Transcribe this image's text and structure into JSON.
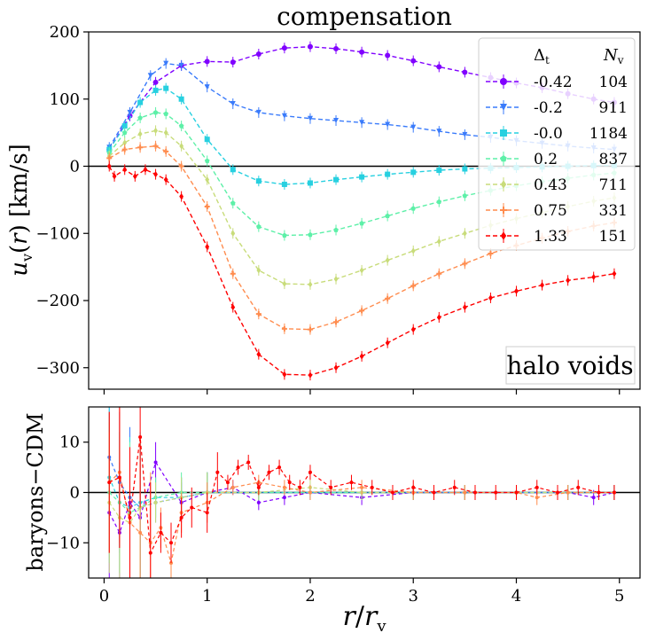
{
  "chart_data": [
    {
      "type": "line",
      "title": "compensation",
      "xlabel": "r/r_v",
      "ylabel": "u_v(r) [km/s]",
      "xlim": [
        -0.15,
        5.2
      ],
      "ylim": [
        -332,
        200
      ],
      "yticks": [
        200,
        100,
        0,
        -100,
        -200,
        -300
      ],
      "xticks": [
        0,
        1,
        2,
        3,
        4,
        5
      ],
      "annotation": "halo voids",
      "legend": {
        "position": "top-right",
        "header_delta": "Δ",
        "header_delta_sub": "t",
        "header_n": "N",
        "header_n_sub": "v"
      },
      "series": [
        {
          "name": "-0.42",
          "n": "104",
          "color": "#8000ff",
          "marker": "circle",
          "x": [
            0.05,
            0.25,
            0.5,
            0.75,
            1.0,
            1.25,
            1.5,
            1.75,
            2.0,
            2.25,
            2.5,
            2.75,
            3.0,
            3.25,
            3.5,
            3.75,
            4.0,
            4.25,
            4.5,
            4.75,
            4.95
          ],
          "y": [
            25,
            75,
            125,
            150,
            156,
            155,
            167,
            176,
            178,
            175,
            170,
            165,
            157,
            148,
            140,
            132,
            124,
            117,
            108,
            100,
            95
          ]
        },
        {
          "name": "-0.2",
          "n": "911",
          "color": "#3a7bfb",
          "marker": "triangle-down",
          "x": [
            0.05,
            0.25,
            0.45,
            0.6,
            0.75,
            1.0,
            1.25,
            1.5,
            1.75,
            2.0,
            2.25,
            2.5,
            2.75,
            3.0,
            3.25,
            3.5,
            3.75,
            4.0,
            4.25,
            4.5,
            4.75,
            4.95
          ],
          "y": [
            28,
            80,
            135,
            153,
            150,
            118,
            93,
            80,
            75,
            71,
            68,
            65,
            62,
            58,
            52,
            47,
            43,
            38,
            34,
            30,
            27,
            25
          ]
        },
        {
          "name": "-0.0",
          "n": "1184",
          "color": "#27d0e0",
          "marker": "square",
          "x": [
            0.05,
            0.2,
            0.35,
            0.5,
            0.6,
            0.75,
            1.0,
            1.25,
            1.5,
            1.75,
            2.0,
            2.25,
            2.5,
            2.75,
            3.0,
            3.25,
            3.5,
            3.75,
            4.0,
            4.25,
            4.5,
            4.75,
            4.95
          ],
          "y": [
            25,
            60,
            95,
            113,
            116,
            100,
            40,
            -5,
            -22,
            -27,
            -25,
            -20,
            -16,
            -12,
            -9,
            -6,
            -4,
            -3,
            -2,
            -1,
            0,
            1,
            1
          ]
        },
        {
          "name": "0.2",
          "n": "837",
          "color": "#5df0a8",
          "marker": "pentagon",
          "x": [
            0.05,
            0.2,
            0.35,
            0.5,
            0.6,
            0.75,
            1.0,
            1.25,
            1.5,
            1.75,
            2.0,
            2.25,
            2.5,
            2.75,
            3.0,
            3.25,
            3.5,
            3.75,
            4.0,
            4.25,
            4.5,
            4.75,
            4.95
          ],
          "y": [
            20,
            50,
            72,
            80,
            78,
            60,
            8,
            -55,
            -90,
            -103,
            -102,
            -95,
            -85,
            -74,
            -63,
            -53,
            -44,
            -36,
            -29,
            -23,
            -18,
            -13,
            -10
          ]
        },
        {
          "name": "0.43",
          "n": "711",
          "color": "#c8dc7a",
          "marker": "diamond",
          "x": [
            0.05,
            0.2,
            0.35,
            0.5,
            0.6,
            0.75,
            1.0,
            1.25,
            1.5,
            1.75,
            2.0,
            2.25,
            2.5,
            2.75,
            3.0,
            3.25,
            3.5,
            3.75,
            4.0,
            4.25,
            4.5,
            4.75,
            4.95
          ],
          "y": [
            15,
            35,
            48,
            53,
            50,
            30,
            -20,
            -100,
            -155,
            -175,
            -176,
            -168,
            -155,
            -140,
            -126,
            -112,
            -100,
            -88,
            -78,
            -69,
            -60,
            -52,
            -47
          ]
        },
        {
          "name": "0.75",
          "n": "331",
          "color": "#ff8c4e",
          "marker": "plus",
          "x": [
            0.05,
            0.2,
            0.35,
            0.5,
            0.6,
            0.75,
            1.0,
            1.25,
            1.5,
            1.75,
            2.0,
            2.25,
            2.5,
            2.75,
            3.0,
            3.25,
            3.5,
            3.75,
            4.0,
            4.25,
            4.5,
            4.75,
            4.95
          ],
          "y": [
            12,
            25,
            28,
            30,
            22,
            0,
            -60,
            -160,
            -220,
            -242,
            -243,
            -232,
            -215,
            -197,
            -178,
            -160,
            -145,
            -130,
            -118,
            -107,
            -97,
            -89,
            -84
          ]
        },
        {
          "name": "1.33",
          "n": "151",
          "color": "#ff0000",
          "marker": "diamond",
          "x": [
            0.05,
            0.1,
            0.2,
            0.3,
            0.4,
            0.5,
            0.6,
            0.75,
            1.0,
            1.25,
            1.5,
            1.75,
            2.0,
            2.25,
            2.5,
            2.75,
            3.0,
            3.25,
            3.5,
            3.75,
            4.0,
            4.25,
            4.5,
            4.75,
            4.95
          ],
          "y": [
            0,
            -15,
            -5,
            -15,
            -5,
            -12,
            -20,
            -45,
            -120,
            -210,
            -280,
            -310,
            -311,
            -300,
            -283,
            -263,
            -243,
            -225,
            -210,
            -196,
            -186,
            -177,
            -170,
            -165,
            -160
          ]
        }
      ]
    },
    {
      "type": "line",
      "xlabel": "r/r_v",
      "ylabel": "baryons−CDM",
      "xlim": [
        -0.15,
        5.2
      ],
      "ylim": [
        -17,
        17
      ],
      "yticks": [
        10,
        0,
        -10
      ],
      "xticks": [
        0,
        1,
        2,
        3,
        4,
        5
      ],
      "series": [
        {
          "name": "-0.42",
          "color": "#8000ff",
          "x": [
            0.05,
            0.15,
            0.25,
            0.35,
            0.5,
            0.75,
            1.0,
            1.25,
            1.5,
            1.75,
            2.0,
            2.5,
            3.0,
            3.5,
            4.0,
            4.5,
            4.75,
            4.95
          ],
          "y": [
            -4,
            -8,
            -2,
            -5,
            6,
            -2,
            0,
            1,
            -2,
            -1,
            0,
            -1,
            0,
            0,
            0,
            0,
            -1,
            0
          ]
        },
        {
          "name": "-0.2",
          "color": "#3a7bfb",
          "x": [
            0.05,
            0.15,
            0.25,
            0.35,
            0.5,
            0.75,
            1.0,
            1.5,
            2.0,
            2.5,
            3.0,
            3.5,
            4.0,
            4.5,
            4.95
          ],
          "y": [
            7,
            2,
            -1,
            -3,
            -2,
            -1,
            0,
            0,
            0,
            0,
            0,
            0,
            0,
            0,
            0
          ]
        },
        {
          "name": "-0.0",
          "color": "#27d0e0",
          "x": [
            0.05,
            0.15,
            0.25,
            0.35,
            0.5,
            0.75,
            1.0,
            1.5,
            2.0,
            2.5,
            3.0,
            3.5,
            4.0,
            4.5,
            4.95
          ],
          "y": [
            3,
            -2,
            -3,
            -2,
            -1,
            -1,
            0,
            0,
            0,
            0,
            0,
            0,
            0,
            0,
            0
          ]
        },
        {
          "name": "0.2",
          "color": "#5df0a8",
          "x": [
            0.05,
            0.15,
            0.25,
            0.35,
            0.5,
            0.75,
            1.0,
            1.5,
            2.0,
            2.5,
            3.0,
            3.5,
            4.0,
            4.5,
            4.95
          ],
          "y": [
            0,
            -2,
            -4,
            -3,
            -1,
            0,
            0,
            0,
            0,
            0,
            0,
            0,
            0,
            0,
            0
          ]
        },
        {
          "name": "0.43",
          "color": "#c8dc7a",
          "x": [
            0.05,
            0.15,
            0.25,
            0.35,
            0.5,
            0.75,
            1.0,
            1.5,
            2.0,
            2.5,
            3.0,
            3.5,
            4.0,
            4.5,
            4.95
          ],
          "y": [
            -2,
            -5,
            -6,
            -3,
            -2,
            -1,
            0,
            0,
            1,
            0,
            0,
            0,
            0,
            0,
            0
          ]
        },
        {
          "name": "0.75",
          "color": "#ff8c4e",
          "x": [
            0.05,
            0.15,
            0.25,
            0.35,
            0.45,
            0.55,
            0.65,
            0.75,
            1.0,
            1.25,
            1.5,
            1.75,
            2.0,
            2.5,
            3.0,
            3.5,
            4.0,
            4.2,
            4.5,
            4.95
          ],
          "y": [
            2,
            4,
            -6,
            -8,
            -10,
            -7,
            -14,
            -4,
            -2,
            1,
            2,
            1,
            0,
            1,
            0,
            0,
            0,
            -1,
            0,
            0
          ]
        },
        {
          "name": "1.33",
          "color": "#ff0000",
          "x": [
            0.05,
            0.15,
            0.25,
            0.35,
            0.45,
            0.55,
            0.65,
            0.75,
            0.85,
            1.0,
            1.1,
            1.2,
            1.3,
            1.4,
            1.5,
            1.6,
            1.7,
            1.8,
            1.9,
            2.0,
            2.2,
            2.4,
            2.6,
            2.8,
            3.0,
            3.2,
            3.4,
            3.6,
            3.8,
            4.0,
            4.2,
            4.4,
            4.6,
            4.8,
            4.95
          ],
          "y": [
            2,
            3,
            -5,
            11,
            -12,
            -8,
            -10,
            -5,
            -3,
            -4,
            4,
            2,
            5,
            6,
            1,
            4,
            5,
            2,
            1,
            4,
            1,
            2,
            1,
            0,
            1,
            0,
            1,
            0,
            0,
            0,
            1,
            0,
            1,
            0,
            0
          ]
        }
      ]
    }
  ]
}
